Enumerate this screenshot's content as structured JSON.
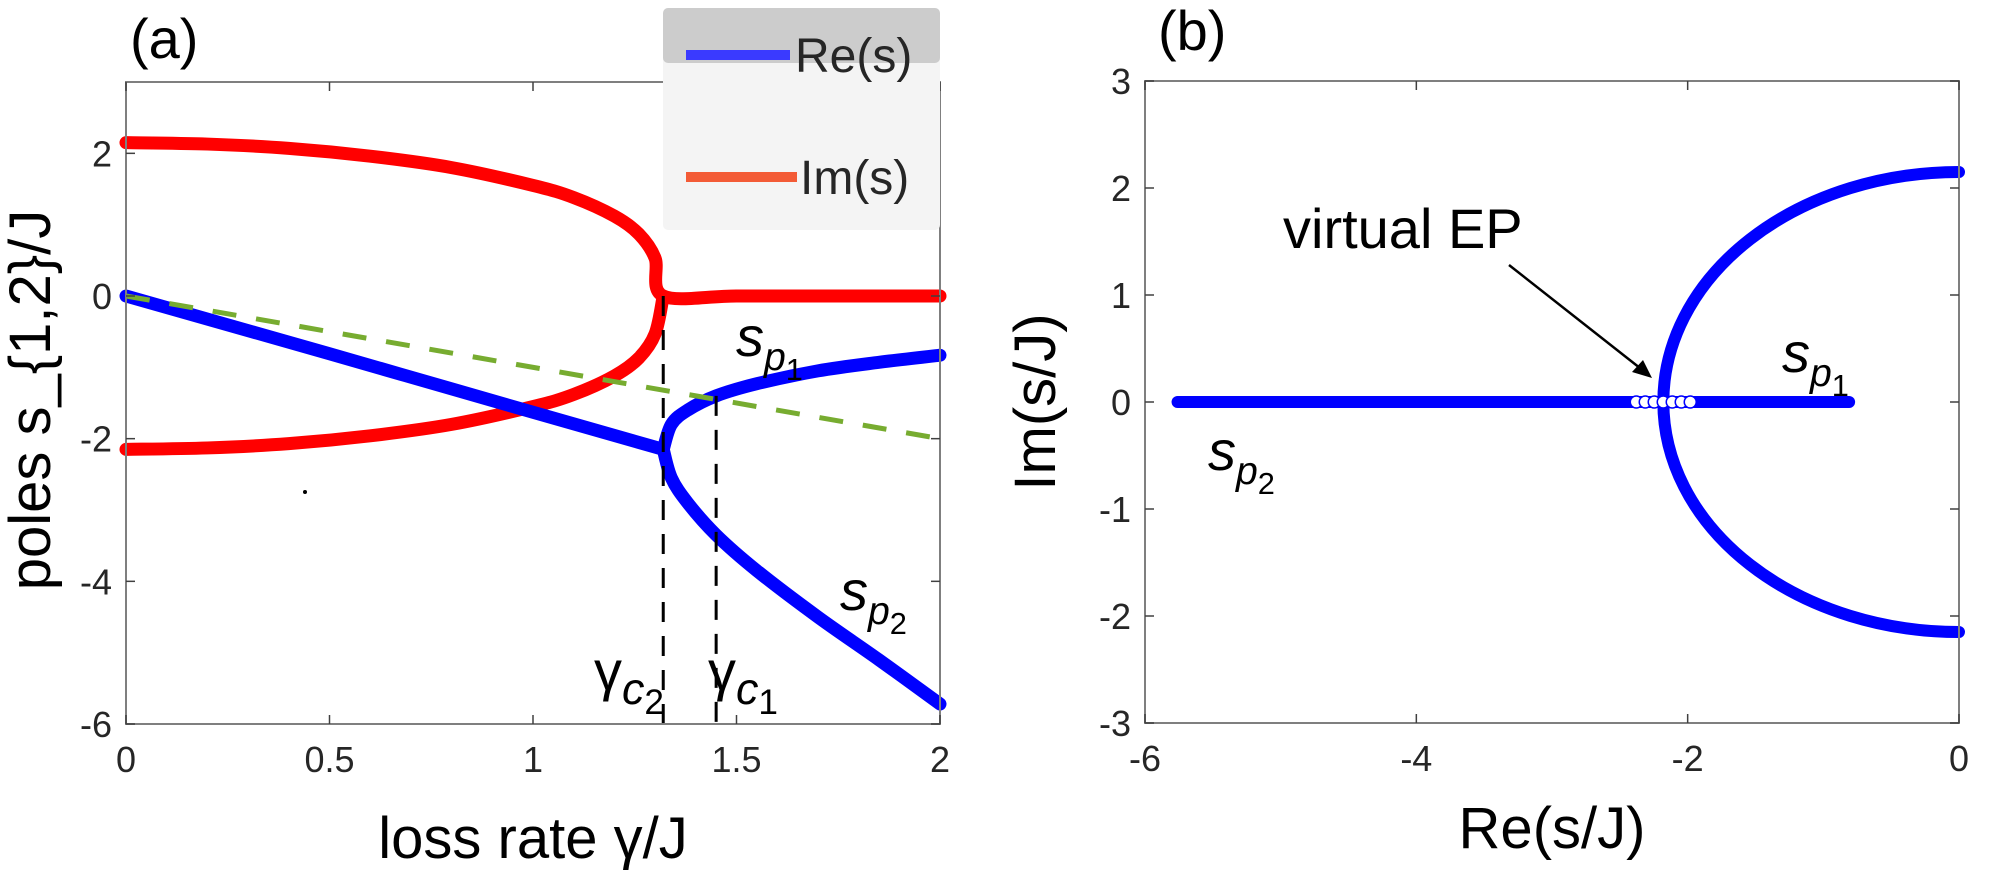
{
  "figure": {
    "panels": [
      "(a)",
      "(b)"
    ]
  },
  "chart_data": [
    {
      "id": "a",
      "type": "line",
      "panel_label": "(a)",
      "title": "",
      "xlabel": "loss rate γ/J",
      "ylabel": "poles s_{1,2}/J",
      "xlim": [
        0,
        2
      ],
      "ylim": [
        -6,
        3
      ],
      "xticks": [
        0,
        0.5,
        1,
        1.5,
        2
      ],
      "xtick_labels": [
        "0",
        "0.5",
        "1",
        "1.5",
        "2"
      ],
      "yticks": [
        -6,
        -4,
        -2,
        0,
        2
      ],
      "ytick_labels": [
        "-6",
        "-4",
        "-2",
        "0",
        "2"
      ],
      "grid": false,
      "legend": {
        "position": "top-right",
        "entries": [
          {
            "label": "Re(s)",
            "color": "#3a3aff"
          },
          {
            "label": "Im(s)",
            "color": "#f35b36"
          }
        ]
      },
      "critical_points": {
        "gamma_c2": 1.32,
        "gamma_c1": 1.45,
        "re_at_ep": -2.15,
        "im_at_zero_loss": 2.15
      },
      "series": [
        {
          "name": "Im(s) upper",
          "color": "#ff0000",
          "x": [
            0,
            0.2,
            0.4,
            0.6,
            0.8,
            1.0,
            1.1,
            1.2,
            1.26,
            1.3,
            1.32,
            1.5,
            1.75,
            2.0
          ],
          "y": [
            2.15,
            2.13,
            2.07,
            1.96,
            1.8,
            1.55,
            1.38,
            1.12,
            0.87,
            0.53,
            0.0,
            0.0,
            0.0,
            0.0
          ]
        },
        {
          "name": "Im(s) lower",
          "color": "#ff0000",
          "x": [
            0,
            0.2,
            0.4,
            0.6,
            0.8,
            1.0,
            1.1,
            1.2,
            1.26,
            1.3,
            1.32
          ],
          "y": [
            -2.15,
            -2.13,
            -2.07,
            -1.96,
            -1.8,
            -1.55,
            -1.38,
            -1.12,
            -0.87,
            -0.53,
            0.0
          ]
        },
        {
          "name": "Re(s) before EP",
          "color": "#0000ff",
          "x": [
            0,
            0.5,
            1.0,
            1.32
          ],
          "y": [
            0,
            -0.81,
            -1.63,
            -2.15
          ]
        },
        {
          "name": "Re(s) s_p1",
          "color": "#0000ff",
          "x": [
            1.32,
            1.34,
            1.38,
            1.45,
            1.55,
            1.7,
            1.85,
            2.0
          ],
          "y": [
            -2.15,
            -1.8,
            -1.6,
            -1.4,
            -1.23,
            -1.05,
            -0.93,
            -0.83
          ]
        },
        {
          "name": "Re(s) s_p2",
          "color": "#0000ff",
          "x": [
            1.32,
            1.34,
            1.38,
            1.45,
            1.55,
            1.7,
            1.85,
            2.0
          ],
          "y": [
            -2.15,
            -2.55,
            -2.9,
            -3.35,
            -3.85,
            -4.5,
            -5.1,
            -5.72
          ]
        },
        {
          "name": "reference slope",
          "color": "#77ac30",
          "style": "dashed",
          "x": [
            0,
            2
          ],
          "y": [
            0,
            -2
          ]
        }
      ],
      "annotations": [
        {
          "text": "s_{p1}",
          "x": 1.38,
          "y": -0.85
        },
        {
          "text": "s_{p2}",
          "x": 1.7,
          "y": -4.7
        },
        {
          "text": "γ_{c2}",
          "x": 1.15,
          "y": -5.4
        },
        {
          "text": "γ_{c1}",
          "x": 1.5,
          "y": -5.4
        }
      ]
    },
    {
      "id": "b",
      "type": "scatter",
      "panel_label": "(b)",
      "title": "",
      "xlabel": "Re(s/J)",
      "ylabel": "Im(s/J)",
      "xlim": [
        -6,
        0
      ],
      "ylim": [
        -3,
        3
      ],
      "xticks": [
        -6,
        -4,
        -2,
        0
      ],
      "xtick_labels": [
        "-6",
        "-4",
        "-2",
        "0"
      ],
      "yticks": [
        -3,
        -2,
        -1,
        0,
        1,
        2,
        3
      ],
      "ytick_labels": [
        "-3",
        "-2",
        "-1",
        "0",
        "1",
        "2",
        "3"
      ],
      "grid": false,
      "series": [
        {
          "name": "pole locus",
          "color": "#0000ff",
          "arc": {
            "center_re": 0,
            "center_im": 0,
            "start": [
              0,
              2.15
            ],
            "ep": [
              -2.18,
              0
            ],
            "end": [
              0,
              -2.15
            ]
          },
          "real_branch": {
            "from_re": -5.76,
            "to_re": -0.81,
            "im": 0
          }
        }
      ],
      "annotations": [
        {
          "text": "virtual EP",
          "x": -4.3,
          "y": 1.1,
          "arrow_to": [
            -2.2,
            0.05
          ]
        },
        {
          "text": "s_{p1}",
          "x": -1.25,
          "y": 0.2
        },
        {
          "text": "s_{p2}",
          "x": -5.6,
          "y": -0.5
        }
      ]
    }
  ]
}
